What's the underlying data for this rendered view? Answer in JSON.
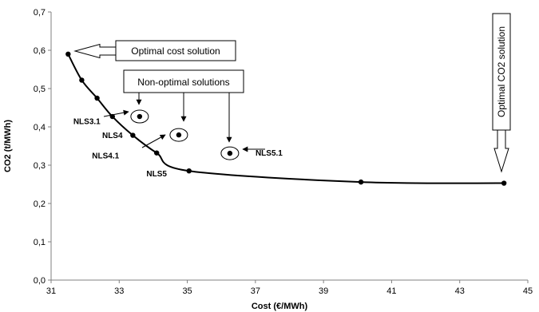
{
  "chart_data": {
    "type": "scatter",
    "title": "",
    "xlabel": "Cost (€/MWh)",
    "ylabel": "CO2 (t/MWh)",
    "xlim": [
      31,
      45
    ],
    "ylim": [
      0,
      0.7
    ],
    "xticks": [
      31,
      33,
      35,
      37,
      39,
      41,
      43,
      45
    ],
    "yticks": [
      0,
      0.1,
      0.2,
      0.3,
      0.4,
      0.5,
      0.6,
      0.7
    ],
    "xtick_labels": [
      "31",
      "33",
      "35",
      "37",
      "39",
      "41",
      "43",
      "45"
    ],
    "ytick_labels": [
      "0,0",
      "0,1",
      "0,2",
      "0,3",
      "0,4",
      "0,5",
      "0,6",
      "0,7"
    ],
    "grid": false,
    "legend": "none",
    "series": [
      {
        "line": true,
        "x": [
          31.5,
          31.9,
          32.35,
          32.8,
          33.4,
          34.1,
          35.05,
          40.1,
          44.3
        ],
        "y": [
          0.59,
          0.522,
          0.475,
          0.427,
          0.378,
          0.332,
          0.285,
          0.256,
          0.253
        ]
      },
      {
        "line": false,
        "x": [
          33.6,
          34.75,
          36.25
        ],
        "y": [
          0.427,
          0.379,
          0.331
        ],
        "circled": true
      }
    ],
    "point_labels": [
      {
        "text": "NLS3.1",
        "x": 32.05,
        "y": 0.407
      },
      {
        "text": "NLS4",
        "x": 32.8,
        "y": 0.371
      },
      {
        "text": "NLS4.1",
        "x": 32.6,
        "y": 0.318
      },
      {
        "text": "NLS5",
        "x": 34.1,
        "y": 0.271
      },
      {
        "text": "NLS5.1",
        "x": 37.4,
        "y": 0.325
      }
    ],
    "annotations": [
      {
        "text": "Optimal cost solution"
      },
      {
        "text": "Non-optimal solutions"
      },
      {
        "text": "Optimal CO2 solution"
      }
    ],
    "colors": {
      "line": "#000000",
      "axis": "#808080",
      "box": "#000000"
    }
  }
}
